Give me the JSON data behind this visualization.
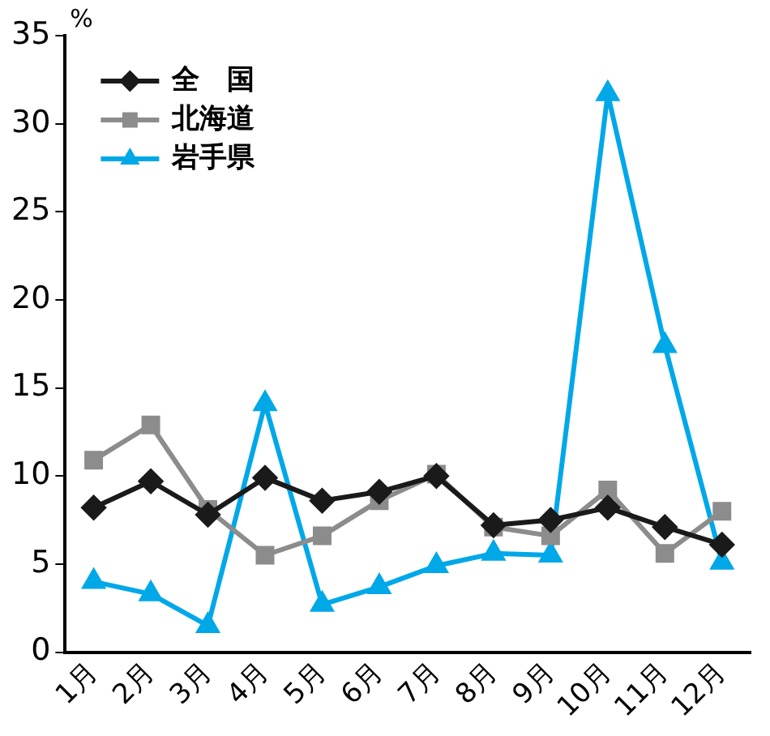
{
  "chart_data": {
    "type": "line",
    "ylabel": "%",
    "categories": [
      "1月",
      "2月",
      "3月",
      "4月",
      "5月",
      "6月",
      "7月",
      "8月",
      "9月",
      "10月",
      "11月",
      "12月"
    ],
    "series": [
      {
        "name": "全　国",
        "color": "#1a1a1a",
        "marker": "diamond",
        "values": [
          8.2,
          9.7,
          7.8,
          9.9,
          8.6,
          9.1,
          10.0,
          7.2,
          7.5,
          8.2,
          7.1,
          6.1
        ]
      },
      {
        "name": "北海道",
        "color": "#8c8c8c",
        "marker": "square",
        "values": [
          10.9,
          12.9,
          8.1,
          5.5,
          6.6,
          8.6,
          10.1,
          7.1,
          6.6,
          9.2,
          5.6,
          8.0
        ]
      },
      {
        "name": "岩手県",
        "color": "#00a8e8",
        "marker": "triangle",
        "values": [
          4.0,
          3.3,
          1.5,
          14.1,
          2.7,
          3.7,
          4.9,
          5.6,
          5.5,
          31.7,
          17.4,
          5.1
        ]
      }
    ],
    "ylim": [
      0,
      35
    ],
    "yticks": [
      0,
      5,
      10,
      15,
      20,
      25,
      30,
      35
    ],
    "grid": false,
    "legend": "top left",
    "line_style": "solid"
  }
}
